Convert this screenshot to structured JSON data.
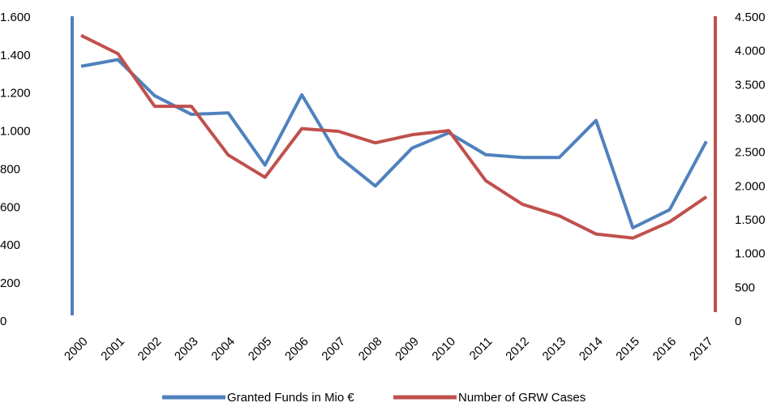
{
  "chart_data": {
    "type": "line",
    "categories": [
      "2000",
      "2001",
      "2002",
      "2003",
      "2004",
      "2005",
      "2006",
      "2007",
      "2008",
      "2009",
      "2010",
      "2011",
      "2012",
      "2013",
      "2014",
      "2015",
      "2016",
      "2017"
    ],
    "series": [
      {
        "name": "Granted Funds in Mio €",
        "color": "#4f81bd",
        "axis": "y",
        "values": [
          1345,
          1380,
          1190,
          1092,
          1100,
          825,
          1195,
          870,
          715,
          915,
          995,
          880,
          865,
          865,
          1060,
          495,
          590,
          950
        ]
      },
      {
        "name": "Number of GRW Cases",
        "color": "#c0504d",
        "axis": "y2",
        "values": [
          4240,
          3970,
          3190,
          3190,
          2470,
          2140,
          2860,
          2820,
          2650,
          2770,
          2830,
          2090,
          1740,
          1570,
          1300,
          1240,
          1480,
          1850
        ]
      }
    ],
    "ylim": [
      0,
      1600
    ],
    "yticks": [
      0,
      200,
      400,
      600,
      800,
      {
        "value": 1000,
        "label": "1.000"
      },
      {
        "value": 1200,
        "label": "1.200"
      },
      {
        "value": 1400,
        "label": "1.400"
      },
      {
        "value": 1600,
        "label": "1.600"
      }
    ],
    "y2lim": [
      0,
      4500
    ],
    "y2ticks": [
      0,
      500,
      {
        "value": 1000,
        "label": "1.000"
      },
      {
        "value": 1500,
        "label": "1.500"
      },
      {
        "value": 2000,
        "label": "2.000"
      },
      {
        "value": 2500,
        "label": "2.500"
      },
      {
        "value": 3000,
        "label": "3.000"
      },
      {
        "value": 3500,
        "label": "3.500"
      },
      {
        "value": 4000,
        "label": "4.000"
      },
      {
        "value": 4500,
        "label": "4.500"
      }
    ],
    "legend": "bottom"
  }
}
